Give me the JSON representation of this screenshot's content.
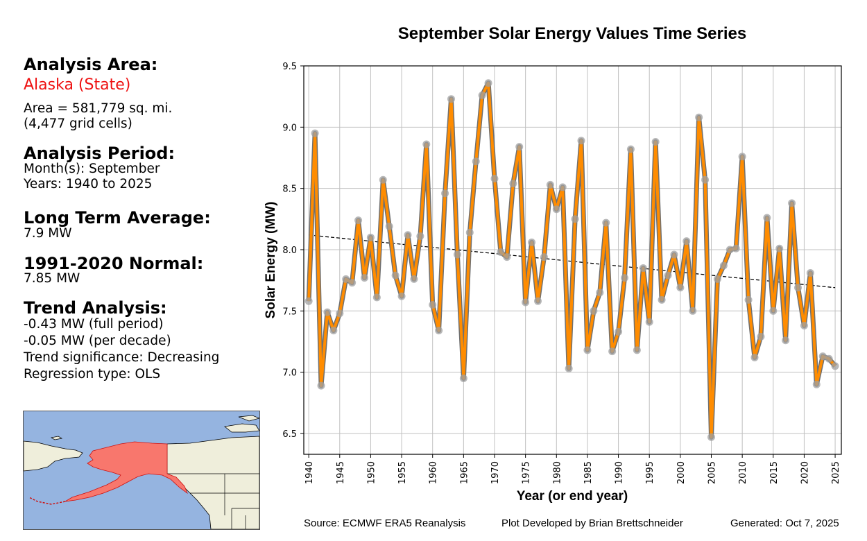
{
  "panel": {
    "area_heading": "Analysis Area:",
    "area_name": "Alaska (State)",
    "area_size": "Area = 581,779 sq. mi.",
    "grid_cells": "(4,477 grid cells)",
    "period_heading": "Analysis Period:",
    "months": "Month(s): September",
    "years": "Years: 1940 to 2025",
    "lta_heading": "Long Term Average:",
    "lta_value": "7.9 MW",
    "normal_heading": "1991-2020 Normal:",
    "normal_value": "7.85 MW",
    "trend_heading": "Trend Analysis:",
    "trend_full": "-0.43 MW (full period)",
    "trend_decade": "-0.05 MW (per decade)",
    "trend_significance": "Trend significance: Decreasing",
    "regression_type": "Regression type: OLS"
  },
  "map": {
    "highlighted_region": "Alaska",
    "highlight_color": "#f8776d",
    "ocean_color": "#95b4e0",
    "land_color": "#efeedb"
  },
  "footer": {
    "source": "Source: ECMWF ERA5 Reanalysis",
    "developer": "Plot Developed by Brian Brettschneider",
    "generated": "Generated: Oct 7, 2025"
  },
  "chart_data": {
    "type": "line",
    "title": "September Solar Energy Values Time Series",
    "xlabel": "Year (or end year)",
    "ylabel": "Solar Energy (MW)",
    "xlim": [
      1939.2,
      2026.0
    ],
    "ylim": [
      6.33,
      9.5
    ],
    "xticks": [
      1940,
      1945,
      1950,
      1955,
      1960,
      1965,
      1970,
      1975,
      1980,
      1985,
      1990,
      1995,
      2000,
      2005,
      2010,
      2015,
      2020,
      2025
    ],
    "yticks": [
      6.5,
      7.0,
      7.5,
      8.0,
      8.5,
      9.0,
      9.5
    ],
    "ytick_labels": [
      "6.5",
      "7.0",
      "7.5",
      "8.0",
      "8.5",
      "9.0",
      "9.5"
    ],
    "grid": true,
    "line_color": "#ff8c00",
    "marker_color": "#a0a0a0",
    "x": [
      1940,
      1941,
      1942,
      1943,
      1944,
      1945,
      1946,
      1947,
      1948,
      1949,
      1950,
      1951,
      1952,
      1953,
      1954,
      1955,
      1956,
      1957,
      1958,
      1959,
      1960,
      1961,
      1962,
      1963,
      1964,
      1965,
      1966,
      1967,
      1968,
      1969,
      1970,
      1971,
      1972,
      1973,
      1974,
      1975,
      1976,
      1977,
      1978,
      1979,
      1980,
      1981,
      1982,
      1983,
      1984,
      1985,
      1986,
      1987,
      1988,
      1989,
      1990,
      1991,
      1992,
      1993,
      1994,
      1995,
      1996,
      1997,
      1998,
      1999,
      2000,
      2001,
      2002,
      2003,
      2004,
      2005,
      2006,
      2007,
      2008,
      2009,
      2010,
      2011,
      2012,
      2013,
      2014,
      2015,
      2016,
      2017,
      2018,
      2019,
      2020,
      2021,
      2022,
      2023,
      2024,
      2025
    ],
    "series": [
      {
        "name": "September Solar Energy",
        "values": [
          7.58,
          8.95,
          6.89,
          7.49,
          7.34,
          7.48,
          7.76,
          7.73,
          8.24,
          7.77,
          8.1,
          7.61,
          8.57,
          8.19,
          7.79,
          7.62,
          8.12,
          7.76,
          8.11,
          8.86,
          7.55,
          7.34,
          8.46,
          9.23,
          7.96,
          6.95,
          8.14,
          8.72,
          9.26,
          9.36,
          8.58,
          7.98,
          7.94,
          8.54,
          8.84,
          7.57,
          8.06,
          7.58,
          7.94,
          8.53,
          8.33,
          8.51,
          7.03,
          8.25,
          8.89,
          7.18,
          7.5,
          7.65,
          8.22,
          7.17,
          7.33,
          7.77,
          8.82,
          7.18,
          7.85,
          7.41,
          8.88,
          7.59,
          7.79,
          7.96,
          7.69,
          8.07,
          7.5,
          9.08,
          8.57,
          6.47,
          7.76,
          7.87,
          8.0,
          8.01,
          8.76,
          7.59,
          7.12,
          7.29,
          8.26,
          7.5,
          8.01,
          7.26,
          8.38,
          7.69,
          7.38,
          7.81,
          6.9,
          7.13,
          7.11,
          7.05
        ]
      }
    ],
    "trend": {
      "name": "OLS trend",
      "x": [
        1940,
        2025
      ],
      "values": [
        8.12,
        7.69
      ],
      "style": "dashed"
    }
  }
}
